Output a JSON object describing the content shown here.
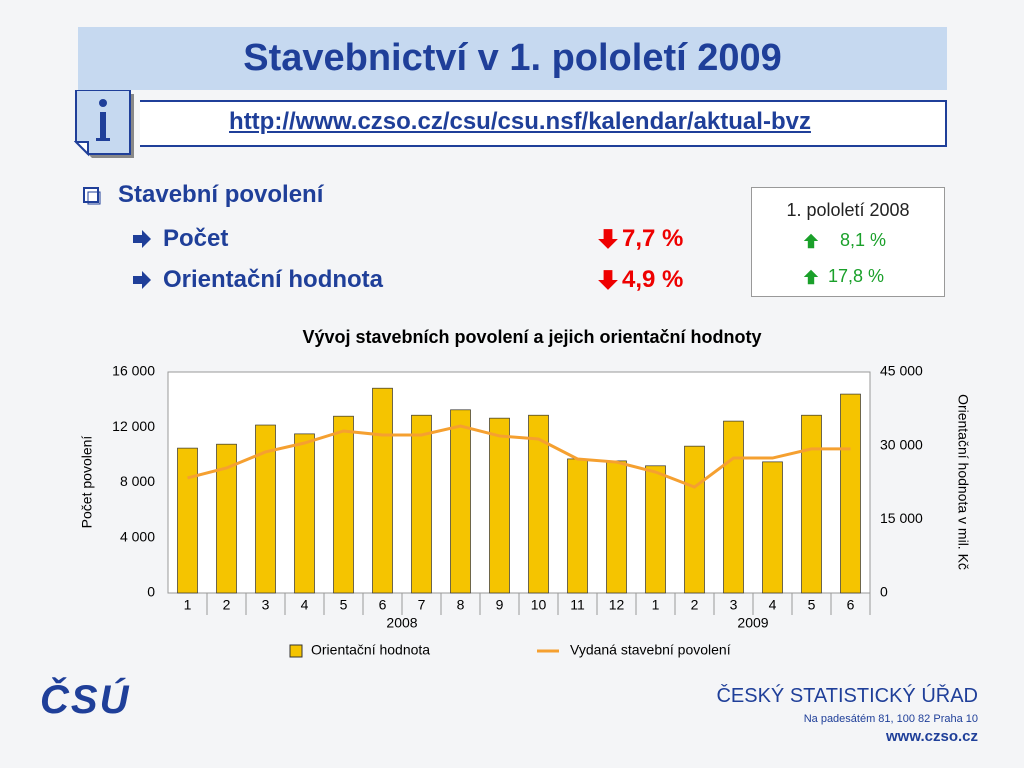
{
  "header": {
    "title": "Stavebnictví v 1. pololetí 2009",
    "link": "http://www.czso.cz/csu/csu.nsf/kalendar/aktual-bvz"
  },
  "summary": {
    "heading": "Stavební povolení",
    "items": [
      {
        "label": "Počet",
        "change": "7,7 %",
        "direction": "down"
      },
      {
        "label": "Orientační hodnota",
        "change": "4,9 %",
        "direction": "down"
      }
    ]
  },
  "comparison": {
    "title": "1. pololetí 2008",
    "items": [
      {
        "change": "8,1 %",
        "direction": "up"
      },
      {
        "change": "17,8 %",
        "direction": "up"
      }
    ]
  },
  "chart_data": {
    "type": "combo",
    "title": "Vývoj stavebních povolení a jejich orientační hodnoty",
    "ylabel": "Počet povolení",
    "y2label": "Orientační hodnota v mil. Kč",
    "categories": [
      "1",
      "2",
      "3",
      "4",
      "5",
      "6",
      "7",
      "8",
      "9",
      "10",
      "11",
      "12",
      "1",
      "2",
      "3",
      "4",
      "5",
      "6"
    ],
    "x_groups": [
      {
        "label": "2008",
        "count": 12
      },
      {
        "label": "2009",
        "count": 6
      }
    ],
    "series": [
      {
        "name": "Orientační hodnota",
        "type": "bar",
        "axis": "y2",
        "color": "#f5c400",
        "values": [
          29500,
          30300,
          34200,
          32400,
          36000,
          41700,
          36200,
          37300,
          35600,
          36200,
          27300,
          26900,
          25900,
          29900,
          35000,
          26700,
          36200,
          40500
        ]
      },
      {
        "name": "Vydaná stavební povolení",
        "type": "line",
        "color": "#f5a030",
        "values": [
          8330,
          9050,
          10210,
          10860,
          11730,
          11440,
          11440,
          12090,
          11370,
          11150,
          9700,
          9480,
          8760,
          7670,
          9770,
          9770,
          10430,
          10430
        ]
      }
    ],
    "ylim": [
      0,
      16000
    ],
    "yticks": [
      0,
      {
        "value": 4000,
        "label": "4 000"
      },
      {
        "value": 8000,
        "label": "8 000"
      },
      {
        "value": 12000,
        "label": "12 000"
      },
      {
        "value": 16000,
        "label": "16 000"
      }
    ],
    "y2lim": [
      0,
      45000
    ],
    "y2ticks": [
      0,
      {
        "value": 15000,
        "label": "15 000"
      },
      {
        "value": 30000,
        "label": "30 000"
      },
      {
        "value": 45000,
        "label": "45 000"
      }
    ],
    "grid": false,
    "legend": "bottom"
  },
  "footer": {
    "logo": "ČSÚ",
    "organization": "ČESKÝ STATISTICKÝ ÚŘAD",
    "address": "Na padesátém 81, 100 82  Praha 10",
    "website": "www.czso.cz"
  }
}
